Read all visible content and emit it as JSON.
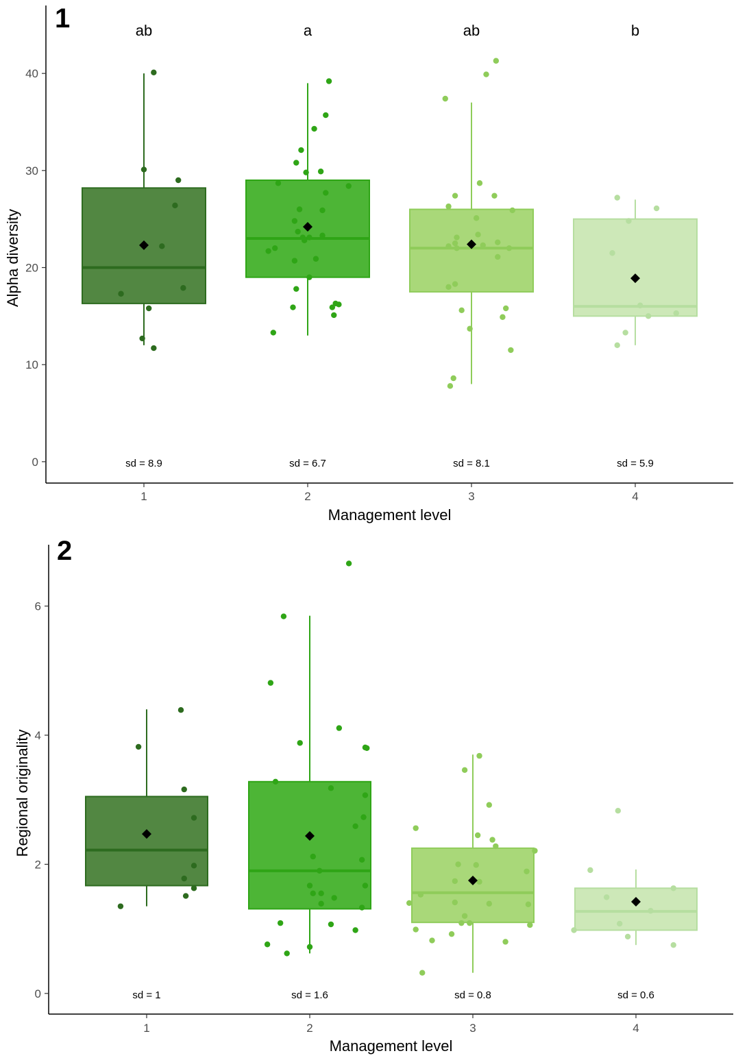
{
  "colors": {
    "level_fill": [
      "#3f7a2e",
      "#3aad20",
      "#a0d46a",
      "#c8e6b0"
    ],
    "level_stroke": [
      "#2d6b1f",
      "#2fa516",
      "#8fcc5a",
      "#b6dea0"
    ],
    "mean_marker": "#000000",
    "axis": "#000000"
  },
  "chart_data": [
    {
      "type": "box",
      "panel_label": "1",
      "title": "",
      "xlabel": "Management level",
      "ylabel": "Alpha diversity",
      "categories": [
        "1",
        "2",
        "3",
        "4"
      ],
      "ylim": [
        -2.2,
        47
      ],
      "yticks": [
        0,
        10,
        20,
        30,
        40
      ],
      "significance_letters": [
        "ab",
        "a",
        "ab",
        "b"
      ],
      "sd_labels": [
        "sd = 8.9",
        "sd = 6.7",
        "sd = 8.1",
        "sd = 5.9"
      ],
      "boxes": [
        {
          "q1": 16.3,
          "median": 20.0,
          "q3": 28.2,
          "whisker_low": 12.0,
          "whisker_high": 40.0,
          "mean": 22.3
        },
        {
          "q1": 19.0,
          "median": 23.0,
          "q3": 29.0,
          "whisker_low": 13.0,
          "whisker_high": 39.0,
          "mean": 24.2
        },
        {
          "q1": 17.5,
          "median": 22.0,
          "q3": 26.0,
          "whisker_low": 8.0,
          "whisker_high": 37.0,
          "mean": 22.4
        },
        {
          "q1": 15.0,
          "median": 16.0,
          "q3": 25.0,
          "whisker_low": 12.0,
          "whisker_high": 27.0,
          "mean": 18.9
        }
      ],
      "points": [
        [
          [
            1.06,
            40.1
          ],
          [
            1.0,
            30.1
          ],
          [
            1.21,
            29.0
          ],
          [
            1.19,
            26.4
          ],
          [
            1.11,
            22.2
          ],
          [
            1.24,
            17.9
          ],
          [
            0.86,
            17.3
          ],
          [
            1.03,
            15.8
          ],
          [
            0.99,
            12.7
          ],
          [
            1.06,
            11.7
          ]
        ],
        [
          [
            2.13,
            39.2
          ],
          [
            2.11,
            35.7
          ],
          [
            2.04,
            34.3
          ],
          [
            1.96,
            32.1
          ],
          [
            1.93,
            30.8
          ],
          [
            2.08,
            29.9
          ],
          [
            1.99,
            29.8
          ],
          [
            1.82,
            28.7
          ],
          [
            2.25,
            28.4
          ],
          [
            2.11,
            27.7
          ],
          [
            2.09,
            25.9
          ],
          [
            1.95,
            26.0
          ],
          [
            2.09,
            23.3
          ],
          [
            1.94,
            23.7
          ],
          [
            1.92,
            24.8
          ],
          [
            1.97,
            23.1
          ],
          [
            2.01,
            23.1
          ],
          [
            1.98,
            22.8
          ],
          [
            1.8,
            22.0
          ],
          [
            1.76,
            21.7
          ],
          [
            2.05,
            20.9
          ],
          [
            1.92,
            20.7
          ],
          [
            2.01,
            19.0
          ],
          [
            1.93,
            17.8
          ],
          [
            1.91,
            15.9
          ],
          [
            2.15,
            15.9
          ],
          [
            2.19,
            16.2
          ],
          [
            2.16,
            15.1
          ],
          [
            2.17,
            16.3
          ],
          [
            1.79,
            13.3
          ]
        ],
        [
          [
            3.15,
            41.3
          ],
          [
            3.09,
            39.9
          ],
          [
            2.84,
            37.4
          ],
          [
            3.05,
            28.7
          ],
          [
            3.14,
            27.4
          ],
          [
            2.9,
            27.4
          ],
          [
            2.86,
            26.3
          ],
          [
            3.25,
            25.9
          ],
          [
            3.03,
            25.1
          ],
          [
            3.04,
            23.4
          ],
          [
            2.91,
            23.1
          ],
          [
            2.9,
            22.5
          ],
          [
            2.86,
            22.2
          ],
          [
            2.91,
            22.0
          ],
          [
            3.07,
            22.3
          ],
          [
            3.23,
            22.0
          ],
          [
            3.16,
            22.6
          ],
          [
            3.16,
            21.1
          ],
          [
            2.9,
            18.3
          ],
          [
            2.86,
            18.0
          ],
          [
            2.94,
            15.6
          ],
          [
            3.21,
            15.8
          ],
          [
            3.19,
            14.9
          ],
          [
            2.99,
            13.7
          ],
          [
            3.24,
            11.5
          ],
          [
            2.89,
            8.6
          ],
          [
            2.87,
            7.8
          ]
        ],
        [
          [
            3.89,
            27.2
          ],
          [
            4.13,
            26.1
          ],
          [
            3.96,
            24.8
          ],
          [
            3.86,
            21.5
          ],
          [
            4.03,
            16.1
          ],
          [
            4.08,
            15.0
          ],
          [
            4.25,
            15.3
          ],
          [
            3.94,
            13.3
          ],
          [
            3.89,
            12.0
          ]
        ]
      ]
    },
    {
      "type": "box",
      "panel_label": "2",
      "title": "",
      "xlabel": "Management level",
      "ylabel": "Regional originality",
      "categories": [
        "1",
        "2",
        "3",
        "4"
      ],
      "ylim": [
        -0.32,
        6.95
      ],
      "yticks": [
        0,
        2,
        4,
        6
      ],
      "significance_letters": [],
      "sd_labels": [
        "sd = 1",
        "sd = 1.6",
        "sd = 0.8",
        "sd = 0.6"
      ],
      "boxes": [
        {
          "q1": 1.67,
          "median": 2.22,
          "q3": 3.05,
          "whisker_low": 1.35,
          "whisker_high": 4.4,
          "mean": 2.47
        },
        {
          "q1": 1.31,
          "median": 1.9,
          "q3": 3.28,
          "whisker_low": 0.62,
          "whisker_high": 5.85,
          "mean": 2.44
        },
        {
          "q1": 1.1,
          "median": 1.56,
          "q3": 2.25,
          "whisker_low": 0.32,
          "whisker_high": 3.7,
          "mean": 1.75
        },
        {
          "q1": 0.98,
          "median": 1.27,
          "q3": 1.63,
          "whisker_low": 0.75,
          "whisker_high": 1.92,
          "mean": 1.42
        }
      ],
      "points": [
        [
          [
            1.21,
            4.39
          ],
          [
            0.95,
            3.82
          ],
          [
            1.23,
            3.16
          ],
          [
            1.29,
            2.72
          ],
          [
            1.29,
            1.98
          ],
          [
            1.23,
            1.78
          ],
          [
            1.29,
            1.63
          ],
          [
            1.24,
            1.51
          ],
          [
            0.84,
            1.35
          ]
        ],
        [
          [
            2.24,
            6.66
          ],
          [
            1.84,
            5.84
          ],
          [
            1.76,
            4.81
          ],
          [
            2.18,
            4.11
          ],
          [
            1.94,
            3.88
          ],
          [
            2.34,
            3.81
          ],
          [
            2.35,
            3.8
          ],
          [
            1.79,
            3.28
          ],
          [
            2.13,
            3.18
          ],
          [
            2.34,
            3.07
          ],
          [
            2.33,
            2.73
          ],
          [
            2.28,
            2.59
          ],
          [
            2.02,
            2.12
          ],
          [
            2.32,
            2.07
          ],
          [
            2.06,
            1.9
          ],
          [
            2.0,
            1.67
          ],
          [
            2.02,
            1.55
          ],
          [
            2.07,
            1.55
          ],
          [
            2.15,
            1.48
          ],
          [
            2.07,
            1.39
          ],
          [
            2.32,
            1.33
          ],
          [
            2.34,
            1.67
          ],
          [
            1.82,
            1.09
          ],
          [
            2.13,
            1.07
          ],
          [
            2.28,
            0.98
          ],
          [
            1.74,
            0.76
          ],
          [
            2.0,
            0.72
          ],
          [
            1.86,
            0.62
          ]
        ],
        [
          [
            3.04,
            3.68
          ],
          [
            2.95,
            3.46
          ],
          [
            3.1,
            2.92
          ],
          [
            2.65,
            2.56
          ],
          [
            3.03,
            2.45
          ],
          [
            3.12,
            2.38
          ],
          [
            3.14,
            2.28
          ],
          [
            3.38,
            2.21
          ],
          [
            2.91,
            2.0
          ],
          [
            3.02,
            1.99
          ],
          [
            3.33,
            1.89
          ],
          [
            2.89,
            1.74
          ],
          [
            3.04,
            1.73
          ],
          [
            2.68,
            1.53
          ],
          [
            2.89,
            1.41
          ],
          [
            3.1,
            1.39
          ],
          [
            3.34,
            1.38
          ],
          [
            2.61,
            1.4
          ],
          [
            2.95,
            1.2
          ],
          [
            2.93,
            1.09
          ],
          [
            2.98,
            1.09
          ],
          [
            3.35,
            1.06
          ],
          [
            2.65,
            0.99
          ],
          [
            2.87,
            0.92
          ],
          [
            2.75,
            0.82
          ],
          [
            3.2,
            0.8
          ],
          [
            2.69,
            0.32
          ]
        ],
        [
          [
            3.89,
            2.83
          ],
          [
            3.72,
            1.91
          ],
          [
            3.82,
            1.49
          ],
          [
            4.23,
            1.63
          ],
          [
            3.9,
            1.08
          ],
          [
            4.09,
            1.28
          ],
          [
            3.62,
            0.98
          ],
          [
            3.95,
            0.88
          ],
          [
            4.23,
            0.75
          ]
        ]
      ]
    }
  ]
}
